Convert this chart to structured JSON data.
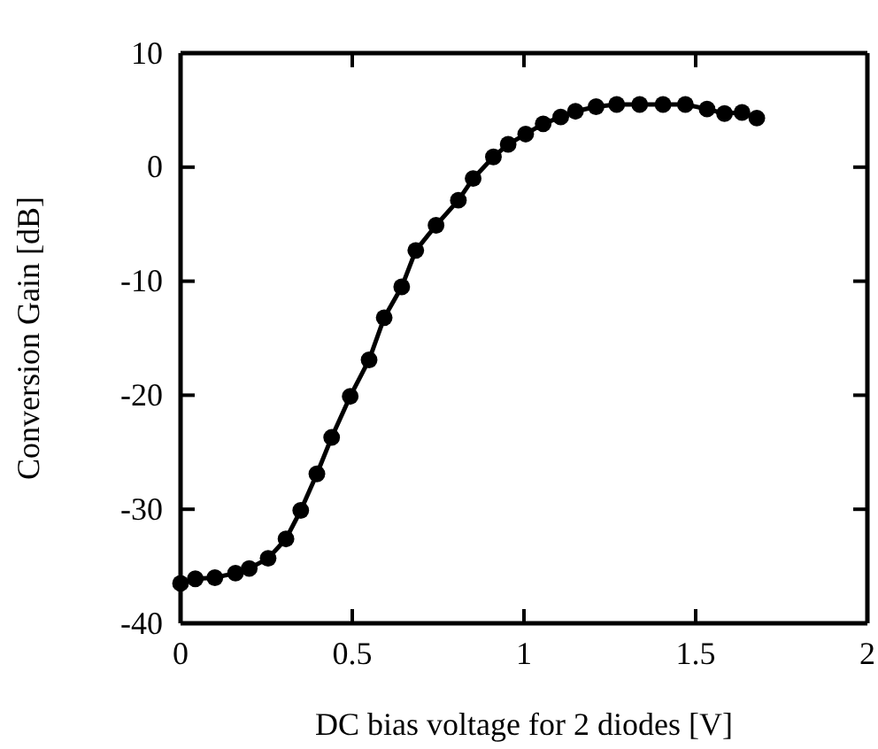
{
  "chart_data": {
    "type": "line",
    "xlabel": "DC bias voltage for 2 diodes [V]",
    "ylabel": "Conversion Gain [dB]",
    "marker": "circle",
    "line_style": "solid",
    "grid": false,
    "xlim": [
      0,
      2
    ],
    "xticks": [
      0,
      0.5,
      1,
      1.5,
      2
    ],
    "ylim": [
      -40,
      10
    ],
    "yticks": [
      -40,
      -30,
      -20,
      -10,
      0,
      10
    ],
    "series": [
      {
        "color": "#000000",
        "x": [
          0,
          0.043,
          0.1,
          0.16,
          0.2,
          0.255,
          0.307,
          0.35,
          0.397,
          0.44,
          0.494,
          0.549,
          0.593,
          0.644,
          0.685,
          0.744,
          0.809,
          0.852,
          0.911,
          0.954,
          1.005,
          1.056,
          1.107,
          1.15,
          1.21,
          1.27,
          1.337,
          1.405,
          1.47,
          1.533,
          1.584,
          1.635,
          1.678
        ],
        "values": [
          -36.5,
          -36.1,
          -36.0,
          -35.6,
          -35.2,
          -34.3,
          -32.6,
          -30.1,
          -26.9,
          -23.7,
          -20.1,
          -16.9,
          -13.2,
          -10.5,
          -7.3,
          -5.1,
          -2.9,
          -1.0,
          0.9,
          2.0,
          2.9,
          3.8,
          4.4,
          4.9,
          5.3,
          5.5,
          5.5,
          5.5,
          5.5,
          5.1,
          4.7,
          4.8,
          4.3
        ]
      }
    ]
  }
}
